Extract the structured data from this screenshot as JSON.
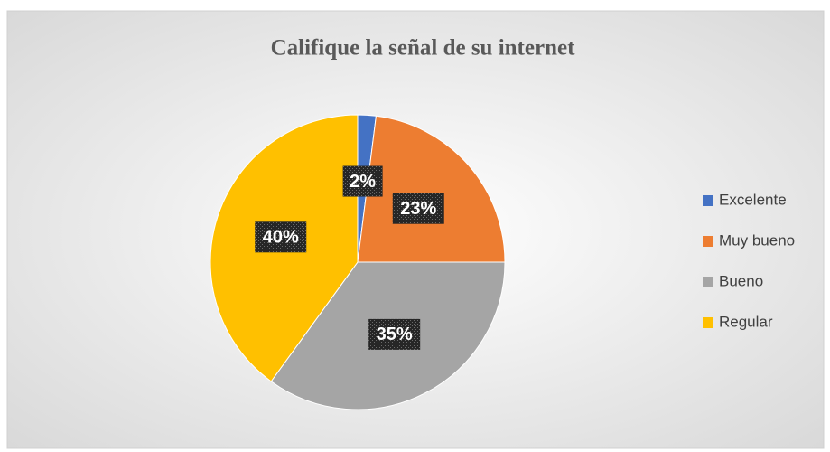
{
  "chart_data": {
    "type": "pie",
    "title": "Califique la señal de su internet",
    "categories": [
      "Excelente",
      "Muy bueno",
      "Bueno",
      "Regular"
    ],
    "values": [
      2,
      23,
      35,
      40
    ],
    "value_labels": [
      "2%",
      "23%",
      "35%",
      "40%"
    ],
    "colors": [
      "#4472c4",
      "#ed7d31",
      "#a5a5a5",
      "#ffc000"
    ],
    "legend": "right"
  }
}
